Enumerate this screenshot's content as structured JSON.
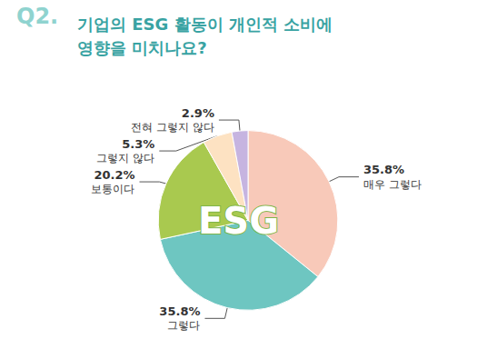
{
  "chart_data": {
    "type": "pie",
    "title": "기업의 ESG 활동이 개인적 소비에 영향을 미치나요?",
    "annotations": [
      "Q2.",
      "ESG"
    ],
    "categories": [
      "매우 그렇다",
      "그렇다",
      "보통이다",
      "그렇지 않다",
      "전혀 그렇지 않다"
    ],
    "values": [
      35.8,
      35.8,
      20.2,
      5.3,
      2.9
    ],
    "value_labels": [
      "35.8%",
      "35.8%",
      "20.2%",
      "5.3%",
      "2.9%"
    ],
    "colors": [
      "#f8c9b9",
      "#6ec6c1",
      "#a9c94f",
      "#fde2c2",
      "#c6b4e0"
    ],
    "data_labels": true
  }
}
